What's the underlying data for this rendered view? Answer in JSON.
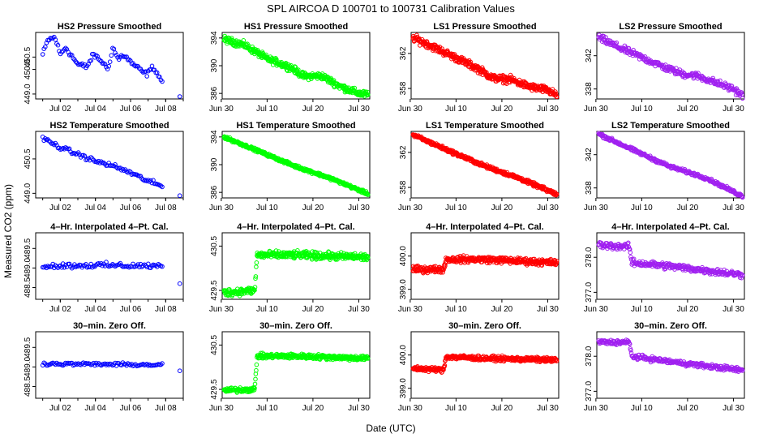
{
  "title": "SPL    AIRCOA D    100701 to 100731    Calibration Values",
  "xlabel": "Date (UTC)",
  "ylabel": "Measured CO2 (ppm)",
  "colors": {
    "blue": "#0000ff",
    "green": "#00ff00",
    "red": "#ff0000",
    "purple": "#a020f0"
  },
  "columns": [
    {
      "name": "HS2",
      "color": "#0000ff",
      "xlim": [
        0.6,
        9.0
      ],
      "xticks": [
        2,
        4,
        6,
        8
      ],
      "xticklabels": [
        "Jul 02",
        "Jul 04",
        "Jul 06",
        "Jul 08"
      ]
    },
    {
      "name": "HS1",
      "color": "#00ff00",
      "xlim": [
        0.2,
        32.4
      ],
      "xticks": [
        0,
        10,
        20,
        30
      ],
      "xticklabels": [
        "Jun 30",
        "Jul 10",
        "Jul 20",
        "Jul 30"
      ]
    },
    {
      "name": "LS1",
      "color": "#ff0000",
      "xlim": [
        0.2,
        32.4
      ],
      "xticks": [
        0,
        10,
        20,
        30
      ],
      "xticklabels": [
        "Jun 30",
        "Jul 10",
        "Jul 20",
        "Jul 30"
      ]
    },
    {
      "name": "LS2",
      "color": "#a020f0",
      "xlim": [
        0.2,
        32.4
      ],
      "xticks": [
        0,
        10,
        20,
        30
      ],
      "xticklabels": [
        "Jun 30",
        "Jul 10",
        "Jul 20",
        "Jul 30"
      ]
    }
  ],
  "chart_data": [
    {
      "type": "scatter",
      "panel_title": "HS2 Pressure Smoothed",
      "series": "HS2",
      "x_range": [
        1,
        7.8
      ],
      "ylim": [
        448.8,
        451.5
      ],
      "yticks": [
        449.0,
        450.0,
        450.5
      ],
      "yticklabels": [
        "449.0",
        "450.0",
        "450.5"
      ],
      "trend": [
        [
          1.0,
          450.6
        ],
        [
          1.3,
          451.2
        ],
        [
          1.7,
          451.3
        ],
        [
          2.0,
          450.6
        ],
        [
          2.3,
          450.9
        ],
        [
          2.6,
          450.6
        ],
        [
          3.0,
          450.2
        ],
        [
          3.5,
          450.1
        ],
        [
          3.9,
          450.6
        ],
        [
          4.4,
          450.3
        ],
        [
          4.7,
          450.0
        ],
        [
          5.0,
          450.9
        ],
        [
          5.3,
          450.4
        ],
        [
          5.6,
          450.6
        ],
        [
          6.0,
          450.3
        ],
        [
          6.5,
          450.0
        ],
        [
          6.9,
          449.8
        ],
        [
          7.3,
          450.1
        ],
        [
          7.8,
          449.5
        ]
      ],
      "noise": 0.08,
      "density": 14,
      "outliers": [
        [
          8.8,
          448.9
        ]
      ]
    },
    {
      "type": "scatter",
      "panel_title": "HS1 Pressure Smoothed",
      "series": "HS1",
      "x_range": [
        0.6,
        32
      ],
      "ylim": [
        385.2,
        394.8
      ],
      "yticks": [
        386,
        390,
        394
      ],
      "yticklabels": [
        "386",
        "390",
        "394"
      ],
      "trend": [
        [
          0.6,
          393.8
        ],
        [
          5,
          393.0
        ],
        [
          10,
          391.0
        ],
        [
          15,
          389.8
        ],
        [
          18,
          388.5
        ],
        [
          22,
          388.5
        ],
        [
          26,
          387.0
        ],
        [
          30,
          386.0
        ],
        [
          32,
          385.8
        ]
      ],
      "noise": 0.35,
      "density": 12,
      "outliers": []
    },
    {
      "type": "scatter",
      "panel_title": "LS1 Pressure Smoothed",
      "series": "LS1",
      "x_range": [
        0.6,
        32
      ],
      "ylim": [
        356.8,
        364.4
      ],
      "yticks": [
        358,
        362
      ],
      "yticklabels": [
        "358",
        "362"
      ],
      "trend": [
        [
          0.6,
          363.8
        ],
        [
          4,
          363.0
        ],
        [
          10,
          361.5
        ],
        [
          15,
          360.2
        ],
        [
          18,
          359.2
        ],
        [
          22,
          359.0
        ],
        [
          26,
          358.2
        ],
        [
          30,
          357.8
        ],
        [
          32,
          357.2
        ]
      ],
      "noise": 0.3,
      "density": 12,
      "outliers": []
    },
    {
      "type": "scatter",
      "panel_title": "LS2 Pressure Smoothed",
      "series": "LS2",
      "x_range": [
        0.6,
        32
      ],
      "ylim": [
        336.8,
        344.8
      ],
      "yticks": [
        338,
        342
      ],
      "yticklabels": [
        "338",
        "342"
      ],
      "trend": [
        [
          0.6,
          344.2
        ],
        [
          5,
          343.0
        ],
        [
          10,
          341.8
        ],
        [
          15,
          340.6
        ],
        [
          19,
          339.8
        ],
        [
          22,
          339.6
        ],
        [
          26,
          338.8
        ],
        [
          30,
          338.0
        ],
        [
          32,
          337.2
        ]
      ],
      "noise": 0.3,
      "density": 9,
      "outliers": []
    },
    {
      "type": "scatter",
      "panel_title": "HS2 Temperature Smoothed",
      "series": "HS2",
      "x_range": [
        1,
        7.8
      ],
      "ylim": [
        448.8,
        451.7
      ],
      "yticks": [
        449.0,
        450.5
      ],
      "yticklabels": [
        "449.0",
        "450.5"
      ],
      "trend": [
        [
          1.0,
          451.4
        ],
        [
          2.0,
          451.0
        ],
        [
          3.0,
          450.7
        ],
        [
          4.0,
          450.4
        ],
        [
          5.0,
          450.2
        ],
        [
          6.0,
          449.9
        ],
        [
          6.8,
          449.6
        ],
        [
          7.8,
          449.3
        ]
      ],
      "noise": 0.07,
      "density": 14,
      "outliers": [
        [
          8.8,
          448.9
        ]
      ]
    },
    {
      "type": "scatter",
      "panel_title": "HS1 Temperature Smoothed",
      "series": "HS1",
      "x_range": [
        0.6,
        32
      ],
      "ylim": [
        385.2,
        394.8
      ],
      "yticks": [
        386,
        390,
        394
      ],
      "yticklabels": [
        "386",
        "390",
        "394"
      ],
      "trend": [
        [
          0.6,
          394.0
        ],
        [
          8,
          392.0
        ],
        [
          16,
          389.8
        ],
        [
          24,
          388.0
        ],
        [
          32,
          385.8
        ]
      ],
      "noise": 0.15,
      "density": 12,
      "outliers": []
    },
    {
      "type": "scatter",
      "panel_title": "LS1 Temperature Smoothed",
      "series": "LS1",
      "x_range": [
        0.6,
        32
      ],
      "ylim": [
        356.8,
        364.4
      ],
      "yticks": [
        358,
        362
      ],
      "yticklabels": [
        "358",
        "362"
      ],
      "trend": [
        [
          0.6,
          364.0
        ],
        [
          8,
          362.3
        ],
        [
          16,
          360.5
        ],
        [
          24,
          359.0
        ],
        [
          32,
          357.2
        ]
      ],
      "noise": 0.15,
      "density": 12,
      "outliers": []
    },
    {
      "type": "scatter",
      "panel_title": "LS2 Temperature Smoothed",
      "series": "LS2",
      "x_range": [
        0.6,
        32
      ],
      "ylim": [
        336.8,
        344.8
      ],
      "yticks": [
        338,
        342
      ],
      "yticklabels": [
        "338",
        "342"
      ],
      "trend": [
        [
          0.6,
          344.5
        ],
        [
          8,
          342.6
        ],
        [
          16,
          340.6
        ],
        [
          24,
          339.2
        ],
        [
          32,
          337.0
        ]
      ],
      "noise": 0.15,
      "density": 9,
      "outliers": []
    },
    {
      "type": "scatter",
      "panel_title": "4–Hr. Interpolated 4–Pt. Cal.",
      "series": "HS2",
      "x_range": [
        1,
        7.8
      ],
      "ylim": [
        488.2,
        489.9
      ],
      "yticks": [
        488.5,
        489.0,
        489.5
      ],
      "yticklabels": [
        "488.5",
        "489.0",
        "489.5"
      ],
      "trend": [
        [
          1,
          489.05
        ],
        [
          4,
          489.07
        ],
        [
          7.8,
          489.05
        ]
      ],
      "noise": 0.05,
      "density": 14,
      "outliers": [
        [
          8.8,
          488.6
        ]
      ]
    },
    {
      "type": "scatter",
      "panel_title": "4–Hr. Interpolated 4–Pt. Cal.",
      "series": "HS1",
      "x_range": [
        0.6,
        32
      ],
      "ylim": [
        429.3,
        430.8
      ],
      "yticks": [
        429.5,
        430.5
      ],
      "yticklabels": [
        "429.5",
        "430.5"
      ],
      "trend": [
        [
          0.6,
          429.45
        ],
        [
          7.3,
          429.5
        ],
        [
          7.8,
          430.3
        ],
        [
          16,
          430.3
        ],
        [
          32,
          430.25
        ]
      ],
      "noise": 0.06,
      "density": 12,
      "outliers": []
    },
    {
      "type": "scatter",
      "panel_title": "4–Hr. Interpolated 4–Pt. Cal.",
      "series": "LS1",
      "x_range": [
        0.6,
        32
      ],
      "ylim": [
        398.7,
        400.7
      ],
      "yticks": [
        399.0,
        400.0
      ],
      "yticklabels": [
        "399.0",
        "400.0"
      ],
      "trend": [
        [
          0.6,
          399.6
        ],
        [
          7.3,
          399.6
        ],
        [
          7.8,
          399.9
        ],
        [
          16,
          399.9
        ],
        [
          32,
          399.8
        ]
      ],
      "noise": 0.07,
      "density": 12,
      "outliers": []
    },
    {
      "type": "scatter",
      "panel_title": "4–Hr. Interpolated 4–Pt. Cal.",
      "series": "LS2",
      "x_range": [
        0.6,
        32
      ],
      "ylim": [
        376.8,
        378.7
      ],
      "yticks": [
        377.0,
        378.0
      ],
      "yticklabels": [
        "377.0",
        "378.0"
      ],
      "trend": [
        [
          0.6,
          378.35
        ],
        [
          7.3,
          378.3
        ],
        [
          7.8,
          377.85
        ],
        [
          16,
          377.75
        ],
        [
          32,
          377.5
        ]
      ],
      "noise": 0.07,
      "density": 9,
      "outliers": []
    },
    {
      "type": "scatter",
      "panel_title": "30–min. Zero Off.",
      "series": "HS2",
      "x_range": [
        1,
        7.8
      ],
      "ylim": [
        488.2,
        489.9
      ],
      "yticks": [
        488.5,
        489.0,
        489.5
      ],
      "yticklabels": [
        "488.5",
        "489.0",
        "489.5"
      ],
      "trend": [
        [
          1,
          489.08
        ],
        [
          4,
          489.07
        ],
        [
          7.8,
          489.05
        ]
      ],
      "noise": 0.03,
      "density": 14,
      "outliers": [
        [
          8.8,
          488.9
        ]
      ]
    },
    {
      "type": "scatter",
      "panel_title": "30–min. Zero Off.",
      "series": "HS1",
      "x_range": [
        0.6,
        32
      ],
      "ylim": [
        429.3,
        430.8
      ],
      "yticks": [
        429.5,
        430.5
      ],
      "yticklabels": [
        "429.5",
        "430.5"
      ],
      "trend": [
        [
          0.6,
          429.48
        ],
        [
          7.3,
          429.5
        ],
        [
          7.8,
          430.25
        ],
        [
          16,
          430.25
        ],
        [
          32,
          430.2
        ]
      ],
      "noise": 0.04,
      "density": 12,
      "outliers": []
    },
    {
      "type": "scatter",
      "panel_title": "30–min. Zero Off.",
      "series": "LS1",
      "x_range": [
        0.6,
        32
      ],
      "ylim": [
        398.7,
        400.7
      ],
      "yticks": [
        399.0,
        400.0
      ],
      "yticklabels": [
        "399.0",
        "400.0"
      ],
      "trend": [
        [
          0.6,
          399.6
        ],
        [
          7.3,
          399.55
        ],
        [
          7.8,
          399.95
        ],
        [
          16,
          399.9
        ],
        [
          32,
          399.85
        ]
      ],
      "noise": 0.05,
      "density": 12,
      "outliers": []
    },
    {
      "type": "scatter",
      "panel_title": "30–min. Zero Off.",
      "series": "LS2",
      "x_range": [
        0.6,
        32
      ],
      "ylim": [
        376.8,
        378.7
      ],
      "yticks": [
        377.0,
        378.0
      ],
      "yticklabels": [
        "377.0",
        "378.0"
      ],
      "trend": [
        [
          0.6,
          378.4
        ],
        [
          7.3,
          378.4
        ],
        [
          7.8,
          378.0
        ],
        [
          16,
          377.85
        ],
        [
          32,
          377.6
        ]
      ],
      "noise": 0.05,
      "density": 9,
      "outliers": []
    }
  ]
}
